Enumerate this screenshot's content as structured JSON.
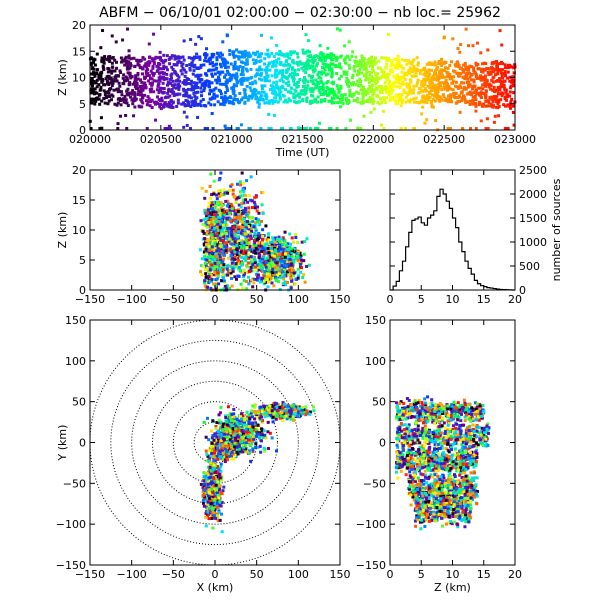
{
  "title": "ABFM − 06/10/01 02:00:00 − 02:30:00 − nb loc.=  25962",
  "chart_data": [
    {
      "type": "scatter",
      "panel": "time-height",
      "xlabel": "Time (UT)",
      "ylabel": "Z (km)",
      "xticks": [
        "020000",
        "020500",
        "021000",
        "021500",
        "022000",
        "022500",
        "023000"
      ],
      "xlim_minutes": [
        0,
        30
      ],
      "ylim": [
        0,
        20
      ],
      "yticks": [
        "0",
        "5",
        "10",
        "15",
        "20"
      ],
      "color_by": "time",
      "colormap": [
        "#000000",
        "#7a00a0",
        "#0040ff",
        "#00e0ff",
        "#00ff40",
        "#ffff00",
        "#ff8000",
        "#ff0000"
      ],
      "density": [
        {
          "t": 0,
          "zmin": 5,
          "zmax": 14
        },
        {
          "t": 5,
          "zmin": 4,
          "zmax": 14
        },
        {
          "t": 10,
          "zmin": 5,
          "zmax": 15
        },
        {
          "t": 15,
          "zmin": 5,
          "zmax": 15
        },
        {
          "t": 20,
          "zmin": 5,
          "zmax": 14
        },
        {
          "t": 25,
          "zmin": 5,
          "zmax": 13
        },
        {
          "t": 30,
          "zmin": 4,
          "zmax": 13
        }
      ]
    },
    {
      "type": "scatter",
      "panel": "x-z",
      "xlabel": "",
      "ylabel": "Z (km)",
      "xlim": [
        -150,
        150
      ],
      "xticks": [
        "−150",
        "−100",
        "−50",
        "0",
        "50",
        "100",
        "150"
      ],
      "ylim": [
        0,
        20
      ],
      "yticks": [
        "0",
        "5",
        "10",
        "15",
        "20"
      ],
      "clusters": [
        {
          "x": 0,
          "z": 8,
          "sx": 7,
          "sz": 4
        },
        {
          "x": 30,
          "z": 9,
          "sx": 14,
          "sz": 4
        },
        {
          "x": 75,
          "z": 5,
          "sx": 14,
          "sz": 2
        }
      ]
    },
    {
      "type": "line",
      "panel": "histogram",
      "xlabel": "",
      "ylabel": "number of sources",
      "xlim": [
        0,
        20
      ],
      "xticks": [
        "0",
        "5",
        "10",
        "15",
        "20"
      ],
      "ylim": [
        0,
        2500
      ],
      "yticks": [
        "0",
        "500",
        "1000",
        "1500",
        "2000",
        "2500"
      ],
      "step": 0.5,
      "x": [
        0,
        0.5,
        1,
        1.5,
        2,
        2.5,
        3,
        3.5,
        4,
        4.5,
        5,
        5.5,
        6,
        6.5,
        7,
        7.5,
        8,
        8.5,
        9,
        9.5,
        10,
        10.5,
        11,
        11.5,
        12,
        12.5,
        13,
        13.5,
        14,
        14.5,
        15,
        15.5,
        16,
        16.5,
        17,
        17.5,
        18,
        18.5,
        19,
        19.5
      ],
      "values": [
        0,
        80,
        180,
        400,
        600,
        900,
        1200,
        1450,
        1480,
        1520,
        1400,
        1350,
        1500,
        1560,
        1650,
        1950,
        2100,
        2000,
        1850,
        1700,
        1500,
        1300,
        1000,
        800,
        600,
        450,
        330,
        200,
        130,
        90,
        70,
        50,
        40,
        30,
        20,
        10,
        8,
        5,
        2,
        0
      ]
    },
    {
      "type": "scatter",
      "panel": "x-y",
      "xlabel": "X (km)",
      "ylabel": "Y (km)",
      "xlim": [
        -150,
        150
      ],
      "ylim": [
        -150,
        150
      ],
      "xticks": [
        "−150",
        "−100",
        "−50",
        "0",
        "50",
        "100",
        "150"
      ],
      "yticks": [
        "−150",
        "−100",
        "−50",
        "0",
        "50",
        "100",
        "150"
      ],
      "range_rings_km": [
        25,
        50,
        75,
        100,
        125,
        150
      ],
      "clusters": [
        {
          "x": 30,
          "y": 10,
          "sx": 15,
          "sy": 12
        },
        {
          "x": -3,
          "y": -55,
          "sx": 5,
          "sy": 18
        },
        {
          "x": 80,
          "y": 38,
          "sx": 14,
          "sy": 4
        },
        {
          "x": 10,
          "y": -5,
          "sx": 6,
          "sy": 7
        }
      ]
    },
    {
      "type": "scatter",
      "panel": "z-y",
      "xlabel": "Z (km)",
      "ylabel": "",
      "xlim": [
        0,
        20
      ],
      "xticks": [
        "0",
        "5",
        "10",
        "15",
        "20"
      ],
      "ylim": [
        -150,
        150
      ],
      "yticks": [
        "−150",
        "−100",
        "−50",
        "0",
        "50",
        "100",
        "150"
      ],
      "bands": [
        {
          "y": 38,
          "sy": 6,
          "zmin": 1,
          "zmax": 15
        },
        {
          "y": 8,
          "sy": 8,
          "zmin": 1,
          "zmax": 16
        },
        {
          "y": -22,
          "sy": 8,
          "zmin": 1,
          "zmax": 14
        },
        {
          "y": -55,
          "sy": 10,
          "zmin": 3,
          "zmax": 14
        },
        {
          "y": -80,
          "sy": 10,
          "zmin": 4,
          "zmax": 13
        }
      ]
    }
  ]
}
